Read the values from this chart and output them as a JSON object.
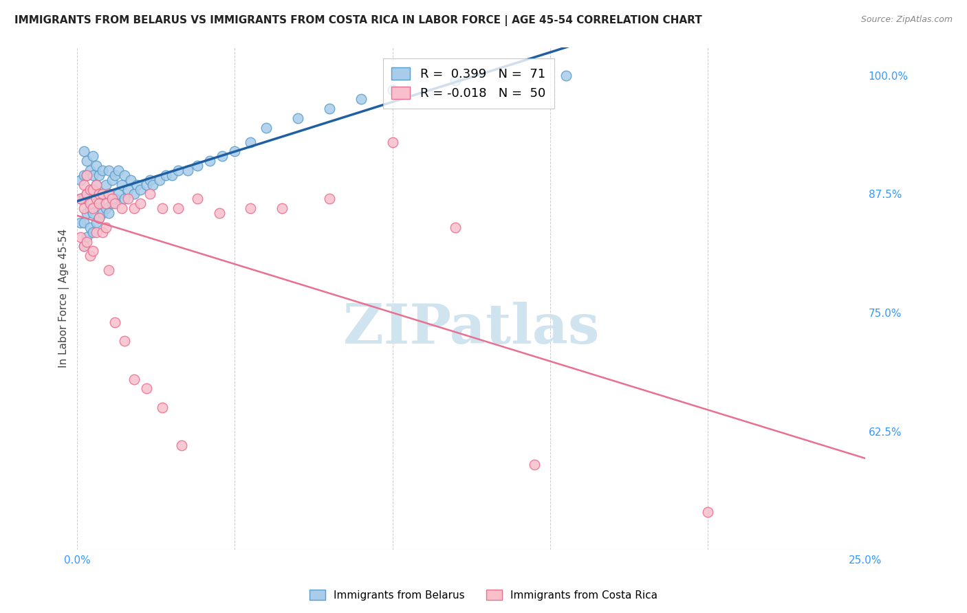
{
  "title": "IMMIGRANTS FROM BELARUS VS IMMIGRANTS FROM COSTA RICA IN LABOR FORCE | AGE 45-54 CORRELATION CHART",
  "source": "Source: ZipAtlas.com",
  "ylabel": "In Labor Force | Age 45-54",
  "xlim": [
    0.0,
    0.25
  ],
  "ylim": [
    0.5,
    1.03
  ],
  "xtick_positions": [
    0.0,
    0.05,
    0.1,
    0.15,
    0.2,
    0.25
  ],
  "xtick_labels": [
    "0.0%",
    "",
    "",
    "",
    "",
    "25.0%"
  ],
  "yticks_right": [
    0.625,
    0.75,
    0.875,
    1.0
  ],
  "ytick_labels_right": [
    "62.5%",
    "75.0%",
    "87.5%",
    "100.0%"
  ],
  "belarus_R": 0.399,
  "belarus_N": 71,
  "costarica_R": -0.018,
  "costarica_N": 50,
  "belarus_color": "#A8CCEA",
  "belarus_edge": "#5B9EC9",
  "costarica_color": "#F9C0CC",
  "costarica_edge": "#E87090",
  "trend_belarus_color": "#2060A0",
  "trend_costarica_color": "#E87090",
  "watermark_text": "ZIPatlas",
  "watermark_color": "#D0E4F0",
  "belarus_x": [
    0.001,
    0.001,
    0.001,
    0.002,
    0.002,
    0.002,
    0.002,
    0.002,
    0.003,
    0.003,
    0.003,
    0.003,
    0.003,
    0.004,
    0.004,
    0.004,
    0.004,
    0.005,
    0.005,
    0.005,
    0.005,
    0.005,
    0.006,
    0.006,
    0.006,
    0.006,
    0.007,
    0.007,
    0.007,
    0.008,
    0.008,
    0.008,
    0.009,
    0.009,
    0.01,
    0.01,
    0.01,
    0.011,
    0.011,
    0.012,
    0.012,
    0.013,
    0.013,
    0.014,
    0.015,
    0.015,
    0.016,
    0.017,
    0.018,
    0.019,
    0.02,
    0.022,
    0.023,
    0.024,
    0.026,
    0.028,
    0.03,
    0.032,
    0.035,
    0.038,
    0.042,
    0.046,
    0.05,
    0.055,
    0.06,
    0.07,
    0.08,
    0.09,
    0.1,
    0.12,
    0.155
  ],
  "belarus_y": [
    0.845,
    0.87,
    0.89,
    0.82,
    0.845,
    0.87,
    0.895,
    0.92,
    0.83,
    0.855,
    0.875,
    0.895,
    0.91,
    0.84,
    0.86,
    0.88,
    0.9,
    0.835,
    0.855,
    0.875,
    0.895,
    0.915,
    0.845,
    0.865,
    0.885,
    0.905,
    0.85,
    0.87,
    0.895,
    0.855,
    0.875,
    0.9,
    0.86,
    0.885,
    0.855,
    0.875,
    0.9,
    0.865,
    0.89,
    0.87,
    0.895,
    0.875,
    0.9,
    0.885,
    0.87,
    0.895,
    0.88,
    0.89,
    0.875,
    0.885,
    0.88,
    0.885,
    0.89,
    0.885,
    0.89,
    0.895,
    0.895,
    0.9,
    0.9,
    0.905,
    0.91,
    0.915,
    0.92,
    0.93,
    0.945,
    0.955,
    0.965,
    0.975,
    0.985,
    0.995,
    1.0
  ],
  "costarica_x": [
    0.001,
    0.002,
    0.002,
    0.003,
    0.003,
    0.004,
    0.004,
    0.005,
    0.005,
    0.006,
    0.006,
    0.007,
    0.007,
    0.008,
    0.009,
    0.01,
    0.011,
    0.012,
    0.014,
    0.016,
    0.018,
    0.02,
    0.023,
    0.027,
    0.032,
    0.038,
    0.045,
    0.055,
    0.065,
    0.08,
    0.001,
    0.002,
    0.003,
    0.004,
    0.005,
    0.006,
    0.007,
    0.008,
    0.009,
    0.01,
    0.012,
    0.015,
    0.018,
    0.022,
    0.027,
    0.033,
    0.1,
    0.12,
    0.145,
    0.2
  ],
  "costarica_y": [
    0.87,
    0.885,
    0.86,
    0.875,
    0.895,
    0.865,
    0.88,
    0.86,
    0.88,
    0.87,
    0.885,
    0.875,
    0.865,
    0.875,
    0.865,
    0.875,
    0.87,
    0.865,
    0.86,
    0.87,
    0.86,
    0.865,
    0.875,
    0.86,
    0.86,
    0.87,
    0.855,
    0.86,
    0.86,
    0.87,
    0.83,
    0.82,
    0.825,
    0.81,
    0.815,
    0.835,
    0.85,
    0.835,
    0.84,
    0.795,
    0.74,
    0.72,
    0.68,
    0.67,
    0.65,
    0.61,
    0.93,
    0.84,
    0.59,
    0.54
  ]
}
